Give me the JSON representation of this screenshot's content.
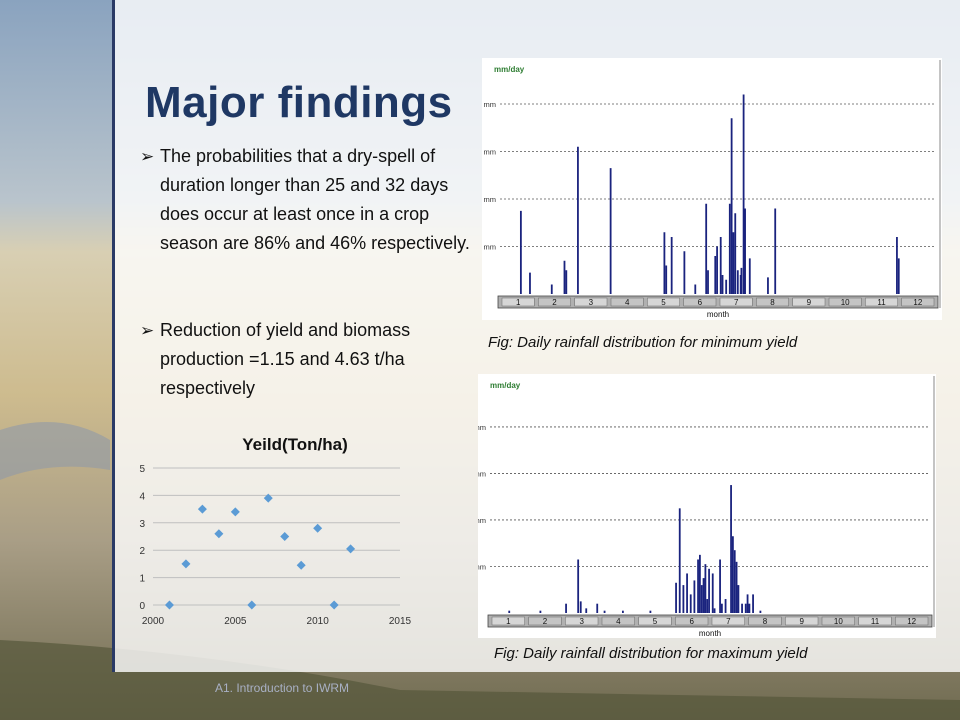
{
  "slide": {
    "title": "Major findings",
    "bullets": [
      "The probabilities that a dry-spell of duration longer than 25 and 32 days does occur at least once in a crop season are 86% and 46% respectively.",
      "Reduction of yield and biomass production =1.15 and 4.63 t/ha respectively"
    ],
    "bullet_marker": "➢",
    "footer": "A1. Introduction to IWRM"
  },
  "colors": {
    "title": "#1f3864",
    "bar": "#1a237e",
    "scatter": "#5b9bd5",
    "gridline": "#999999"
  },
  "captions": {
    "min": "Fig: Daily rainfall distribution for minimum yield",
    "max": "Fig: Daily rainfall distribution for maximum yield"
  },
  "chart_data": [
    {
      "type": "scatter",
      "title": "Yeild(Ton/ha)",
      "xlabel": "",
      "ylabel": "",
      "xlim": [
        2000,
        2015
      ],
      "ylim": [
        0,
        5
      ],
      "xticks": [
        2000,
        2005,
        2010,
        2015
      ],
      "yticks": [
        0,
        1,
        2,
        3,
        4,
        5
      ],
      "grid": true,
      "points": [
        {
          "x": 2001,
          "y": 0
        },
        {
          "x": 2002,
          "y": 1.5
        },
        {
          "x": 2003,
          "y": 3.5
        },
        {
          "x": 2004,
          "y": 2.6
        },
        {
          "x": 2005,
          "y": 3.4
        },
        {
          "x": 2006,
          "y": 0
        },
        {
          "x": 2007,
          "y": 3.9
        },
        {
          "x": 2008,
          "y": 2.5
        },
        {
          "x": 2009,
          "y": 1.45
        },
        {
          "x": 2010,
          "y": 2.8
        },
        {
          "x": 2011,
          "y": 0
        },
        {
          "x": 2012,
          "y": 2.05
        }
      ]
    },
    {
      "type": "bar",
      "ylabel": "mm/day",
      "xlabel": "month",
      "yticks": [
        10,
        20,
        30,
        40
      ],
      "ytick_labels": [
        "10 mm",
        "20 mm",
        "30 mm",
        "40 mm"
      ],
      "ylim": [
        0,
        44
      ],
      "months": [
        "1",
        "2",
        "3",
        "4",
        "5",
        "6",
        "7",
        "8",
        "9",
        "10",
        "11",
        "12"
      ],
      "values": [
        {
          "x": 1.55,
          "y": 17.5
        },
        {
          "x": 1.8,
          "y": 4.5
        },
        {
          "x": 2.4,
          "y": 2
        },
        {
          "x": 2.75,
          "y": 7
        },
        {
          "x": 2.8,
          "y": 5
        },
        {
          "x": 3.12,
          "y": 31
        },
        {
          "x": 4.02,
          "y": 26.5
        },
        {
          "x": 5.5,
          "y": 13
        },
        {
          "x": 5.55,
          "y": 6
        },
        {
          "x": 5.7,
          "y": 12
        },
        {
          "x": 6.05,
          "y": 9
        },
        {
          "x": 6.35,
          "y": 2
        },
        {
          "x": 6.65,
          "y": 19
        },
        {
          "x": 6.7,
          "y": 5
        },
        {
          "x": 6.9,
          "y": 8
        },
        {
          "x": 6.95,
          "y": 10
        },
        {
          "x": 7.05,
          "y": 12
        },
        {
          "x": 7.1,
          "y": 4
        },
        {
          "x": 7.2,
          "y": 3
        },
        {
          "x": 7.3,
          "y": 19
        },
        {
          "x": 7.35,
          "y": 37
        },
        {
          "x": 7.4,
          "y": 13
        },
        {
          "x": 7.45,
          "y": 17
        },
        {
          "x": 7.52,
          "y": 5
        },
        {
          "x": 7.6,
          "y": 4
        },
        {
          "x": 7.62,
          "y": 5.5
        },
        {
          "x": 7.68,
          "y": 42
        },
        {
          "x": 7.72,
          "y": 18
        },
        {
          "x": 7.85,
          "y": 7.5
        },
        {
          "x": 8.35,
          "y": 3.5
        },
        {
          "x": 8.55,
          "y": 18
        },
        {
          "x": 11.9,
          "y": 12
        },
        {
          "x": 11.95,
          "y": 7.5
        }
      ]
    },
    {
      "type": "bar",
      "ylabel": "mm/day",
      "xlabel": "month",
      "yticks": [
        20,
        40,
        60,
        80
      ],
      "ytick_labels": [
        "20 mm",
        "40 mm",
        "60 mm",
        "80 mm"
      ],
      "ylim": [
        0,
        92
      ],
      "months": [
        "1",
        "2",
        "3",
        "4",
        "5",
        "6",
        "7",
        "8",
        "9",
        "10",
        "11",
        "12"
      ],
      "values": [
        {
          "x": 1.5,
          "y": 1
        },
        {
          "x": 2.35,
          "y": 1
        },
        {
          "x": 3.05,
          "y": 4
        },
        {
          "x": 3.38,
          "y": 23
        },
        {
          "x": 3.45,
          "y": 5
        },
        {
          "x": 3.6,
          "y": 2
        },
        {
          "x": 3.9,
          "y": 4
        },
        {
          "x": 4.1,
          "y": 1
        },
        {
          "x": 4.6,
          "y": 1
        },
        {
          "x": 5.35,
          "y": 1
        },
        {
          "x": 6.05,
          "y": 13
        },
        {
          "x": 6.15,
          "y": 45
        },
        {
          "x": 6.25,
          "y": 12
        },
        {
          "x": 6.35,
          "y": 17
        },
        {
          "x": 6.45,
          "y": 8
        },
        {
          "x": 6.55,
          "y": 14
        },
        {
          "x": 6.65,
          "y": 23
        },
        {
          "x": 6.7,
          "y": 25
        },
        {
          "x": 6.75,
          "y": 12
        },
        {
          "x": 6.8,
          "y": 15
        },
        {
          "x": 6.85,
          "y": 21
        },
        {
          "x": 6.9,
          "y": 6
        },
        {
          "x": 6.95,
          "y": 19
        },
        {
          "x": 7.05,
          "y": 17
        },
        {
          "x": 7.1,
          "y": 2
        },
        {
          "x": 7.25,
          "y": 23
        },
        {
          "x": 7.3,
          "y": 4
        },
        {
          "x": 7.4,
          "y": 6
        },
        {
          "x": 7.55,
          "y": 55
        },
        {
          "x": 7.6,
          "y": 33
        },
        {
          "x": 7.65,
          "y": 27
        },
        {
          "x": 7.7,
          "y": 22
        },
        {
          "x": 7.75,
          "y": 12
        },
        {
          "x": 7.85,
          "y": 4
        },
        {
          "x": 7.95,
          "y": 4
        },
        {
          "x": 8.0,
          "y": 8
        },
        {
          "x": 8.05,
          "y": 4
        },
        {
          "x": 8.15,
          "y": 8
        },
        {
          "x": 8.35,
          "y": 1
        }
      ]
    }
  ]
}
